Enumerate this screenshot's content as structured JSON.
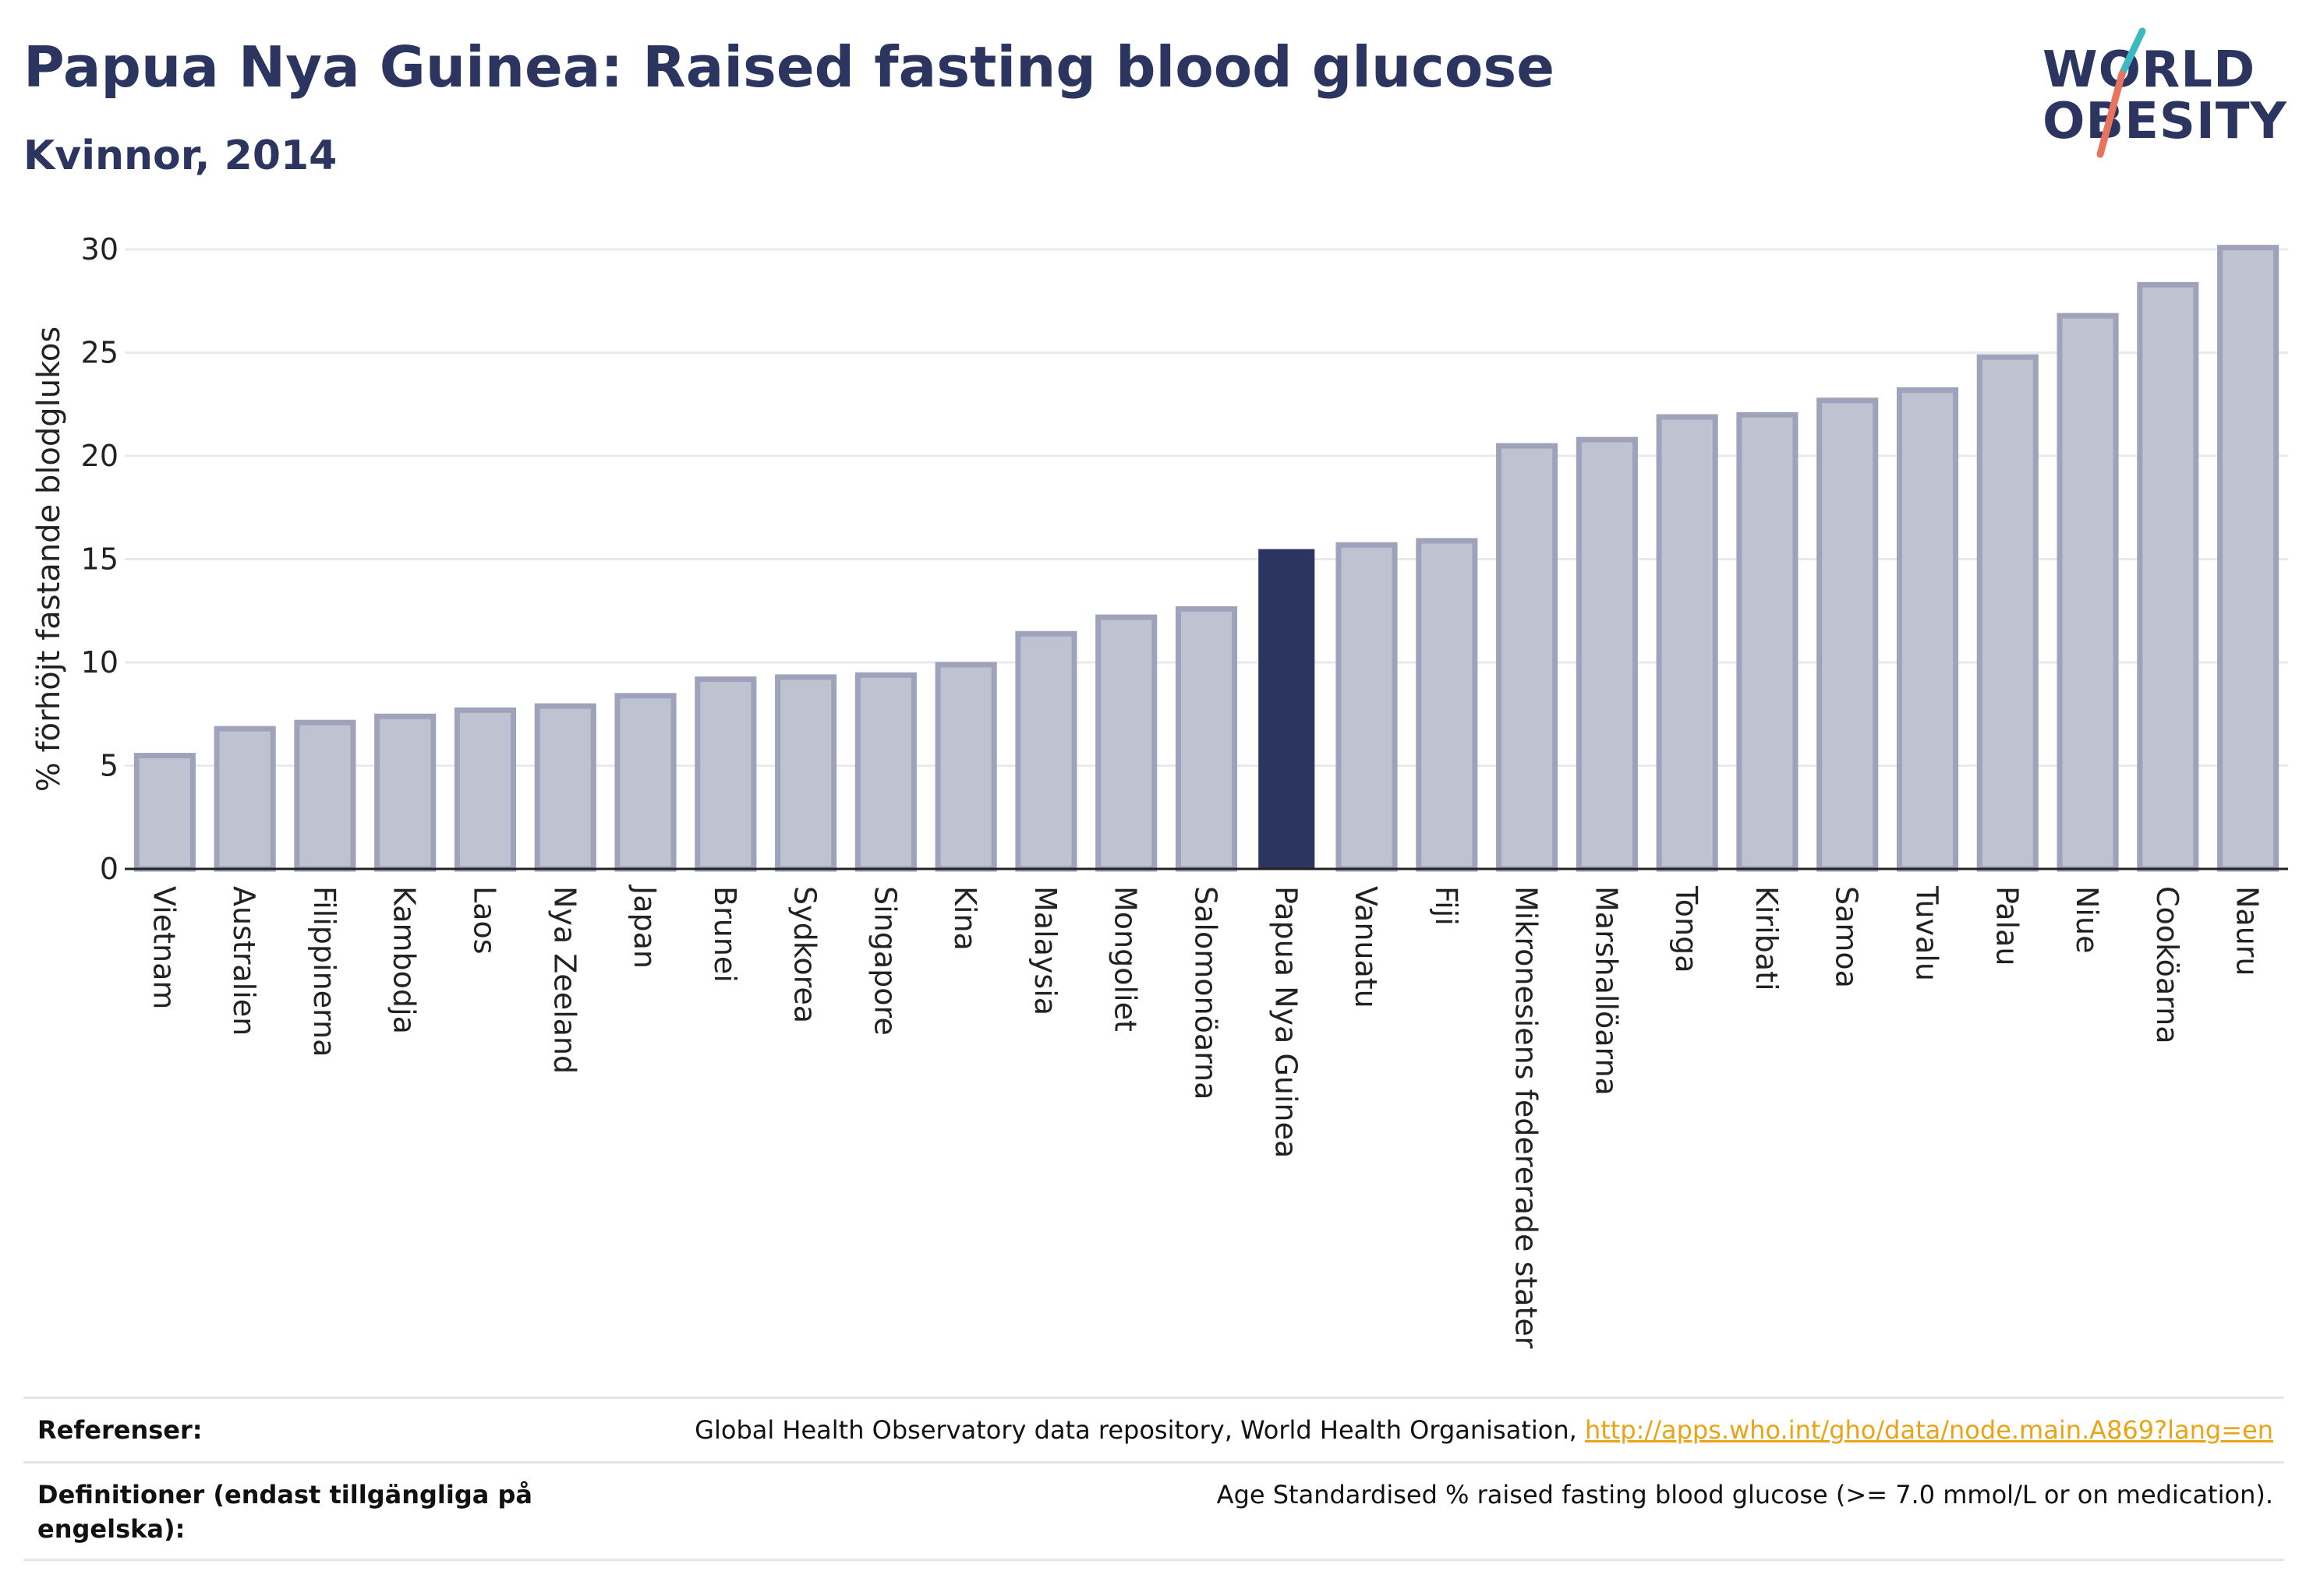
{
  "title": "Papua Nya Guinea: Raised fasting blood glucose",
  "subtitle": "Kvinnor, 2014",
  "logo": {
    "line1": "WORLD",
    "line2": "OBESITY"
  },
  "colors": {
    "bar_default": "#bfc2d0",
    "bar_border": "#9ea3bb",
    "bar_highlight": "#2b3560",
    "grid": "#e9e9ee",
    "logo_teal": "#3bb8c0",
    "logo_coral": "#e8735f",
    "link": "#e8a317"
  },
  "chart_data": {
    "type": "bar",
    "ylabel": "% förhöjt fastande blodglukos",
    "xlabel": "",
    "ylim": [
      0,
      30
    ],
    "yticks": [
      "0",
      "5",
      "10",
      "15",
      "20",
      "25",
      "30"
    ],
    "grid": true,
    "highlight": "Papua Nya Guinea",
    "categories": [
      "Vietnam",
      "Australien",
      "Filippinerna",
      "Kambodja",
      "Laos",
      "Nya Zeeland",
      "Japan",
      "Brunei",
      "Sydkorea",
      "Singapore",
      "Kina",
      "Malaysia",
      "Mongoliet",
      "Salomonöarna",
      "Papua Nya Guinea",
      "Vanuatu",
      "Fiji",
      "Mikronesiens federerade stater",
      "Marshallöarna",
      "Tonga",
      "Kiribati",
      "Samoa",
      "Tuvalu",
      "Palau",
      "Niue",
      "Cooköarna",
      "Nauru"
    ],
    "values": [
      5.6,
      6.9,
      7.2,
      7.5,
      7.8,
      8.0,
      8.5,
      9.3,
      9.4,
      9.5,
      10.0,
      11.5,
      12.3,
      12.7,
      15.6,
      15.8,
      16.0,
      20.6,
      20.9,
      22.0,
      22.1,
      22.8,
      23.3,
      24.9,
      26.9,
      28.4,
      30.2
    ]
  },
  "references": {
    "ref_label": "Referenser:",
    "ref_text": "Global Health Observatory data repository, World Health Organisation, ",
    "ref_link": "http://apps.who.int/gho/data/node.main.A869?lang=en",
    "def_label": "Definitioner (endast tillgängliga på engelska):",
    "def_text": "Age Standardised % raised fasting blood glucose (>= 7.0 mmol/L or on medication)."
  }
}
